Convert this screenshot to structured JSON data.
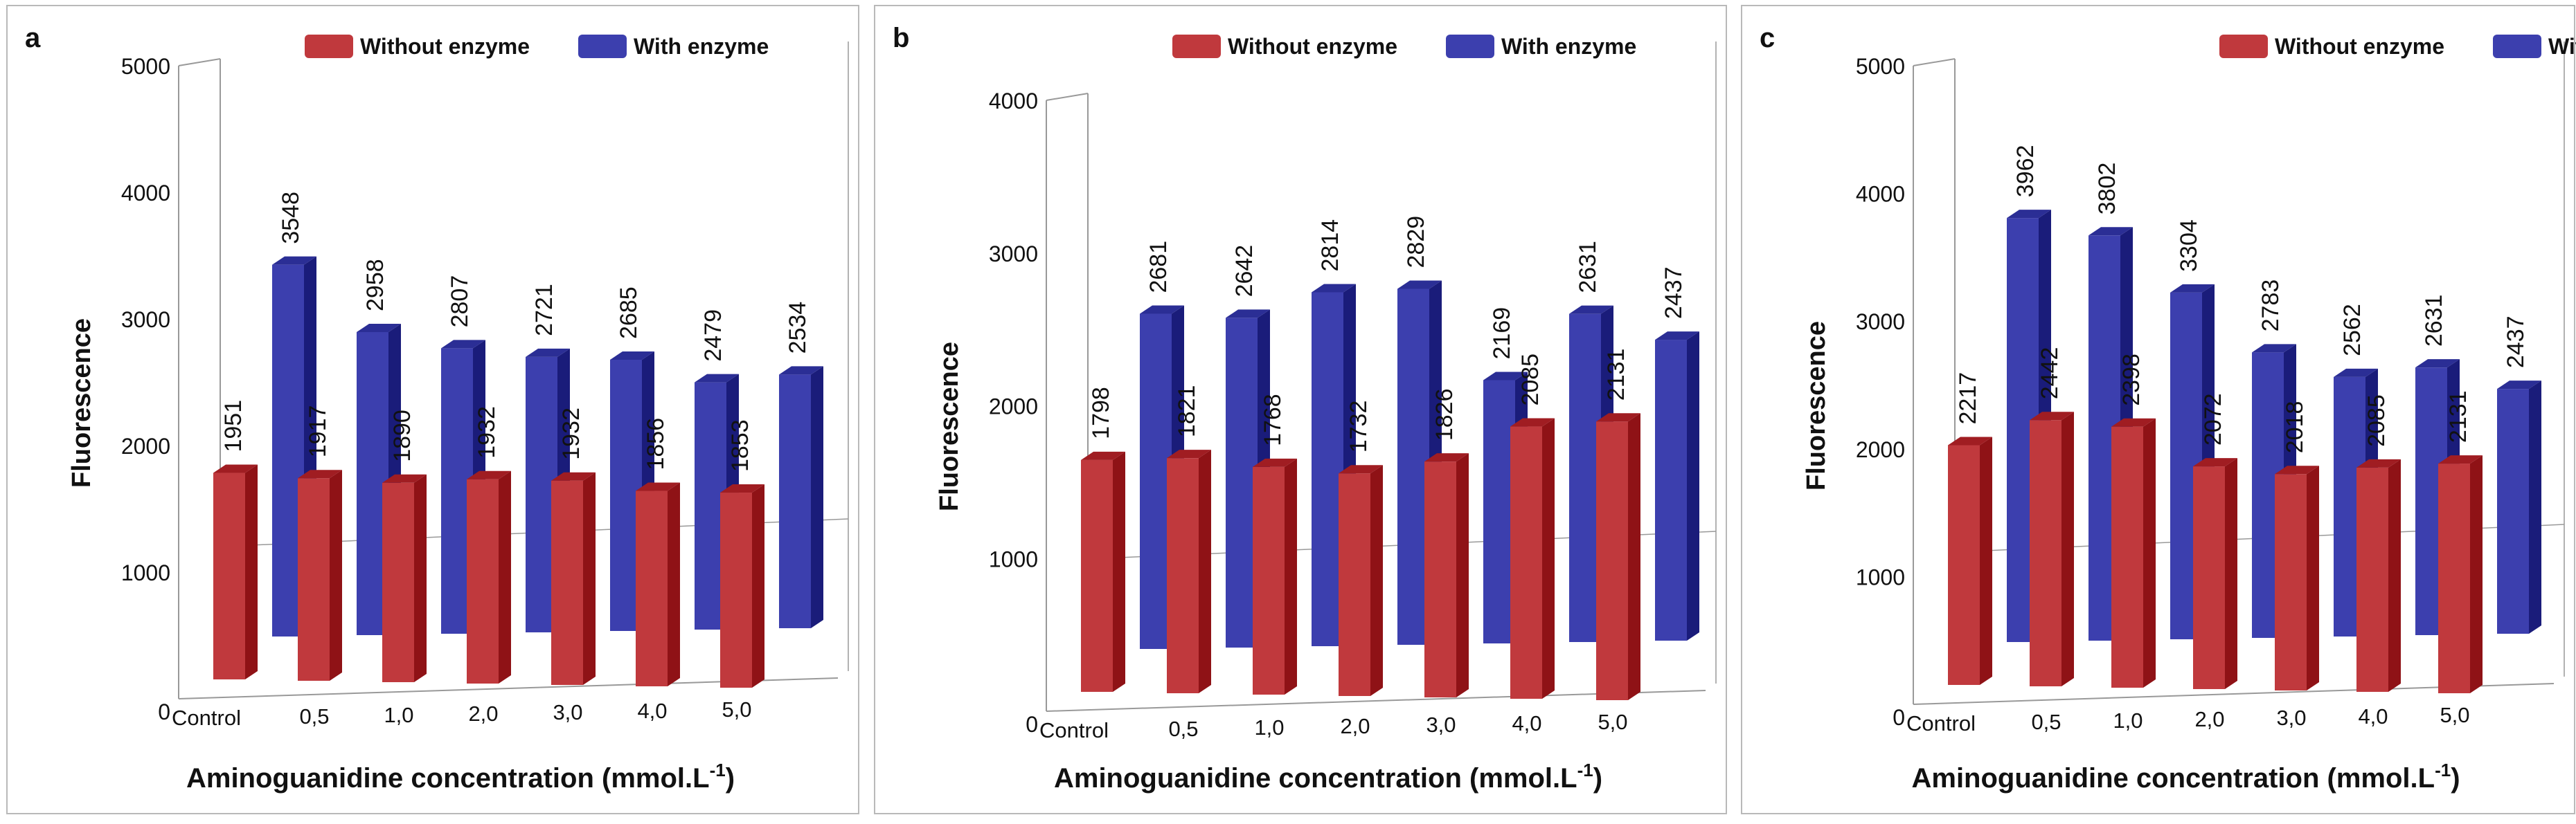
{
  "figure": {
    "panels": [
      {
        "letter": "a"
      },
      {
        "letter": "b"
      },
      {
        "letter": "c"
      }
    ]
  },
  "colors": {
    "without_front": "#c0393d",
    "without_side": "#8f1216",
    "without_top": "#a01d22",
    "with_front": "#3c3fae",
    "with_side": "#1a1c7a",
    "with_top": "#2b2e95",
    "axis": "#999999",
    "label": "#111111"
  },
  "chart_data": [
    {
      "type": "bar",
      "panel": "a",
      "title": "",
      "xlabel": "Aminoguanidine concentration (mmol.L",
      "xlabel_sup": "-1",
      "xlabel_close": ")",
      "ylabel": "Fluorescence",
      "ylim": [
        0,
        5000
      ],
      "yticks": [
        "0",
        "1000",
        "2000",
        "3000",
        "4000",
        "5000"
      ],
      "categories": [
        "Control",
        "0,5",
        "1,0",
        "2,0",
        "3,0",
        "4,0",
        "5,0"
      ],
      "legend": [
        "Without enzyme",
        "With enzyme"
      ],
      "series": [
        {
          "name": "Without enzyme",
          "values": [
            1951,
            1917,
            1890,
            1932,
            1932,
            1856,
            1853
          ],
          "labels": [
            "1951",
            "1917",
            "1890",
            "1932",
            "1932",
            "1856",
            "1853"
          ]
        },
        {
          "name": "With enzyme",
          "values": [
            3548,
            2958,
            2807,
            2721,
            2685,
            2479,
            2534
          ],
          "labels": [
            "3548",
            "2958",
            "2807",
            "2721",
            "2685",
            "2479",
            "2534"
          ]
        }
      ]
    },
    {
      "type": "bar",
      "panel": "b",
      "title": "",
      "xlabel": "Aminoguanidine concentration (mmol.L",
      "xlabel_sup": "-1",
      "xlabel_close": ")",
      "ylabel": "Fluorescence",
      "ylim": [
        0,
        4000
      ],
      "yticks": [
        "0",
        "1000",
        "2000",
        "3000",
        "4000"
      ],
      "categories": [
        "Control",
        "0,5",
        "1,0",
        "2,0",
        "3,0",
        "4,0",
        "5,0"
      ],
      "legend": [
        "Without enzyme",
        "With enzyme"
      ],
      "series": [
        {
          "name": "Without enzyme",
          "values": [
            1798,
            1821,
            1768,
            1732,
            1826,
            2085,
            2131
          ],
          "labels": [
            "1798",
            "1821",
            "1768",
            "1732",
            "1826",
            "2085",
            "2131"
          ]
        },
        {
          "name": "With enzyme",
          "values": [
            2681,
            2642,
            2814,
            2829,
            2169,
            2631,
            2437
          ],
          "labels": [
            "2681",
            "2642",
            "2814",
            "2829",
            "2169",
            "2631",
            "2437"
          ]
        }
      ]
    },
    {
      "type": "bar",
      "panel": "c",
      "title": "",
      "xlabel": "Aminoguanidine concentration (mmol.L",
      "xlabel_sup": "-1",
      "xlabel_close": ")",
      "ylabel": "Fluorescence",
      "ylim": [
        0,
        5000
      ],
      "yticks": [
        "0",
        "1000",
        "2000",
        "3000",
        "4000",
        "5000"
      ],
      "categories": [
        "Control",
        "0,5",
        "1,0",
        "2,0",
        "3,0",
        "4,0",
        "5,0"
      ],
      "legend": [
        "Without enzyme",
        "With enzyme"
      ],
      "series": [
        {
          "name": "Without enzyme",
          "values": [
            2217,
            2442,
            2398,
            2072,
            2018,
            2085,
            2131
          ],
          "labels": [
            "2217",
            "2442",
            "2398",
            "2072",
            "2018",
            "2085",
            "2131"
          ]
        },
        {
          "name": "With enzyme",
          "values": [
            3962,
            3802,
            3304,
            2783,
            2562,
            2631,
            2437
          ],
          "labels": [
            "3962",
            "3802",
            "3304",
            "2783",
            "2562",
            "2631",
            "2437"
          ]
        }
      ]
    }
  ]
}
